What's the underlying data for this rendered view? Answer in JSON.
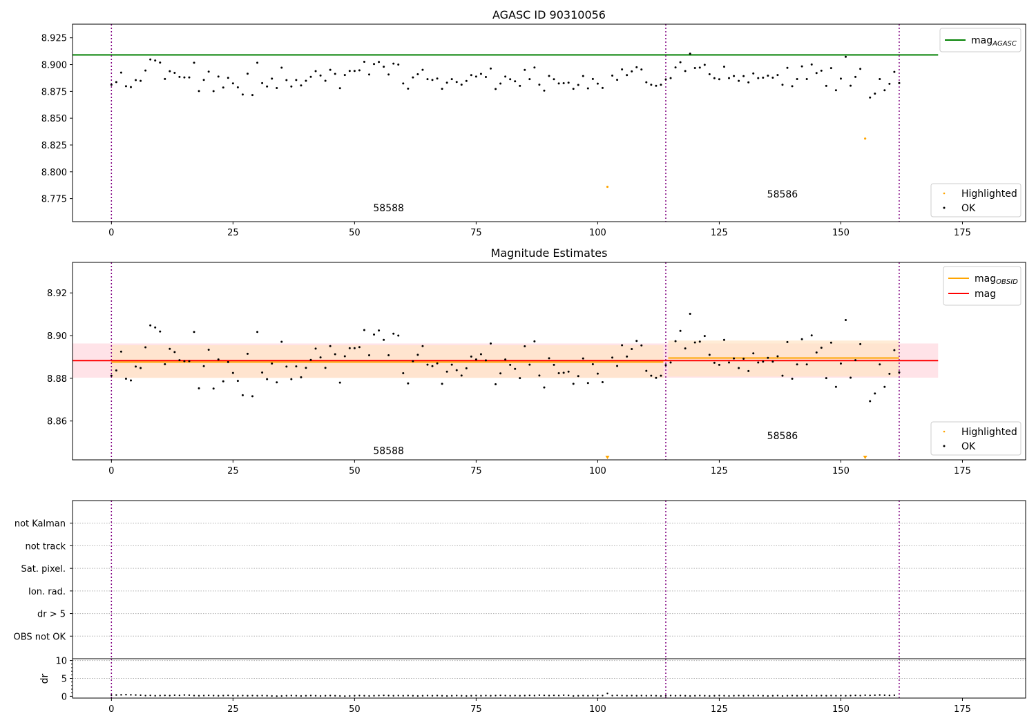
{
  "colors": {
    "ok": "#000000",
    "highlighted": "#ffa500",
    "mag_agasc": "#008000",
    "mag": "#ff0000",
    "mag_obsid": "#ffa500",
    "obs_boundary": "#800080",
    "mag_band": "#ffc0cb",
    "obsid_band": "#ffe4c4",
    "flag_grid": "#b0b0b0"
  },
  "chart_data": [
    {
      "type": "scatter",
      "title": "AGASC ID 90310056",
      "xlabel": "",
      "ylabel": "",
      "xlim": [
        -8,
        188
      ],
      "ylim": [
        8.7535,
        8.9377
      ],
      "xticks": [
        "0",
        "25",
        "50",
        "75",
        "100",
        "125",
        "150",
        "175"
      ],
      "yticks": [
        "8.775",
        "8.800",
        "8.825",
        "8.850",
        "8.875",
        "8.900",
        "8.925"
      ],
      "legend_lines": [
        {
          "name": "mag",
          "sub": "AGASC"
        }
      ],
      "legend_points": [
        "Highlighted",
        "OK"
      ],
      "mag_agasc": {
        "value": 8.909,
        "x_range": [
          -8,
          170
        ]
      },
      "obs_boundaries": [
        0,
        114,
        162
      ],
      "obsid_labels": [
        {
          "text": "58588",
          "x": 57,
          "y": 8.763
        },
        {
          "text": "58586",
          "x": 138,
          "y": 8.776
        }
      ],
      "highlighted": [
        [
          102,
          8.786
        ],
        [
          155,
          8.831
        ]
      ]
    },
    {
      "type": "scatter",
      "title": "Magnitude Estimates",
      "xlabel": "",
      "ylabel": "",
      "xlim": [
        -8,
        188
      ],
      "ylim": [
        8.8418,
        8.9343
      ],
      "xticks": [
        "0",
        "25",
        "50",
        "75",
        "100",
        "125",
        "150",
        "175"
      ],
      "yticks": [
        "8.86",
        "8.88",
        "8.90",
        "8.92"
      ],
      "legend_lines": [
        {
          "name": "mag",
          "sub": "OBSID"
        },
        {
          "name": "mag",
          "sub": ""
        }
      ],
      "legend_points": [
        "Highlighted",
        "OK"
      ],
      "mag": {
        "value": 8.8883,
        "band": [
          8.8803,
          8.8963
        ],
        "x_range": [
          -8,
          170
        ]
      },
      "mag_obsid": [
        {
          "x_range": [
            0,
            113.5
          ],
          "value": 8.8876,
          "band": [
            8.8802,
            8.8955
          ]
        },
        {
          "x_range": [
            114.5,
            162
          ],
          "value": 8.8895,
          "band": [
            8.8808,
            8.8977
          ]
        }
      ],
      "obs_boundaries": [
        0,
        114,
        162
      ],
      "obsid_labels": [
        {
          "text": "58588",
          "x": 57,
          "y": 8.8445
        },
        {
          "text": "58586",
          "x": 138,
          "y": 8.8515
        }
      ],
      "highlighted_clipped_x": [
        102,
        155
      ]
    },
    {
      "type": "scatter",
      "title": "",
      "xlabel": "",
      "ylabel": "",
      "xlim": [
        -8,
        188
      ],
      "flag_labels": [
        "not Kalman",
        "not track",
        "Sat. pixel.",
        "Ion. rad.",
        "dr > 5",
        "OBS not OK"
      ],
      "obs_boundaries": [
        0,
        114,
        162
      ]
    },
    {
      "type": "scatter",
      "title": "",
      "xlabel": "",
      "ylabel": "dr",
      "xlim": [
        -8,
        188
      ],
      "ylim": [
        -0.5,
        10.5
      ],
      "xticks": [
        "0",
        "25",
        "50",
        "75",
        "100",
        "125",
        "150",
        "175"
      ],
      "yticks": [
        "0",
        "5",
        "10"
      ],
      "obs_boundaries": [
        0,
        114,
        162
      ],
      "dr_points": [
        [
          0,
          0.3
        ],
        [
          1,
          0.35
        ],
        [
          2,
          0.4
        ],
        [
          3,
          0.45
        ],
        [
          4,
          0.4
        ],
        [
          5,
          0.35
        ],
        [
          6,
          0.3
        ],
        [
          7,
          0.2
        ],
        [
          8,
          0.25
        ],
        [
          9,
          0.15
        ],
        [
          10,
          0.2
        ],
        [
          11,
          0.25
        ],
        [
          12,
          0.2
        ],
        [
          13,
          0.3
        ],
        [
          14,
          0.25
        ],
        [
          15,
          0.35
        ],
        [
          16,
          0.3
        ],
        [
          17,
          0.2
        ],
        [
          18,
          0.15
        ],
        [
          19,
          0.2
        ],
        [
          20,
          0.25
        ],
        [
          21,
          0.2
        ],
        [
          22,
          0.15
        ],
        [
          23,
          0.2
        ],
        [
          24,
          0.25
        ],
        [
          25,
          0.2
        ],
        [
          26,
          0.15
        ],
        [
          27,
          0.2
        ],
        [
          28,
          0.15
        ],
        [
          29,
          0.2
        ],
        [
          30,
          0.15
        ],
        [
          31,
          0.2
        ],
        [
          32,
          0.15
        ],
        [
          33,
          0.1
        ],
        [
          34,
          0.05
        ],
        [
          35,
          0.1
        ],
        [
          36,
          0.15
        ],
        [
          37,
          0.2
        ],
        [
          38,
          0.15
        ],
        [
          39,
          0.1
        ],
        [
          40,
          0.15
        ],
        [
          41,
          0.2
        ],
        [
          42,
          0.15
        ],
        [
          43,
          0.1
        ],
        [
          44,
          0.15
        ],
        [
          45,
          0.2
        ],
        [
          46,
          0.15
        ],
        [
          47,
          0.1
        ],
        [
          48,
          0.05
        ],
        [
          49,
          0.1
        ],
        [
          50,
          0.15
        ],
        [
          51,
          0.2
        ],
        [
          52,
          0.15
        ],
        [
          53,
          0.1
        ],
        [
          54,
          0.15
        ],
        [
          55,
          0.2
        ],
        [
          56,
          0.25
        ],
        [
          57,
          0.2
        ],
        [
          58,
          0.15
        ],
        [
          59,
          0.2
        ],
        [
          60,
          0.15
        ],
        [
          61,
          0.2
        ],
        [
          62,
          0.15
        ],
        [
          63,
          0.1
        ],
        [
          64,
          0.15
        ],
        [
          65,
          0.2
        ],
        [
          66,
          0.15
        ],
        [
          67,
          0.2
        ],
        [
          68,
          0.15
        ],
        [
          69,
          0.1
        ],
        [
          70,
          0.15
        ],
        [
          71,
          0.2
        ],
        [
          72,
          0.15
        ],
        [
          73,
          0.1
        ],
        [
          74,
          0.15
        ],
        [
          75,
          0.2
        ],
        [
          76,
          0.15
        ],
        [
          77,
          0.2
        ],
        [
          78,
          0.15
        ],
        [
          79,
          0.2
        ],
        [
          80,
          0.25
        ],
        [
          81,
          0.2
        ],
        [
          82,
          0.15
        ],
        [
          83,
          0.2
        ],
        [
          84,
          0.15
        ],
        [
          85,
          0.2
        ],
        [
          86,
          0.25
        ],
        [
          87,
          0.2
        ],
        [
          88,
          0.3
        ],
        [
          89,
          0.25
        ],
        [
          90,
          0.2
        ],
        [
          91,
          0.25
        ],
        [
          92,
          0.2
        ],
        [
          93,
          0.3
        ],
        [
          94,
          0.25
        ],
        [
          95,
          0.1
        ],
        [
          96,
          0.15
        ],
        [
          97,
          0.2
        ],
        [
          98,
          0.15
        ],
        [
          99,
          0.2
        ],
        [
          100,
          0.25
        ],
        [
          101,
          0.2
        ],
        [
          102,
          0.8
        ],
        [
          103,
          0.2
        ],
        [
          104,
          0.25
        ],
        [
          105,
          0.2
        ],
        [
          106,
          0.15
        ],
        [
          107,
          0.2
        ],
        [
          108,
          0.15
        ],
        [
          109,
          0.2
        ],
        [
          110,
          0.15
        ],
        [
          111,
          0.2
        ],
        [
          112,
          0.15
        ],
        [
          113,
          0.1
        ],
        [
          114,
          0.15
        ],
        [
          115,
          0.2
        ],
        [
          116,
          0.15
        ],
        [
          117,
          0.2
        ],
        [
          118,
          0.15
        ],
        [
          119,
          0.1
        ],
        [
          120,
          0.15
        ],
        [
          121,
          0.2
        ],
        [
          122,
          0.15
        ],
        [
          123,
          0.1
        ],
        [
          124,
          0.15
        ],
        [
          125,
          0.2
        ],
        [
          126,
          0.15
        ],
        [
          127,
          0.1
        ],
        [
          128,
          0.15
        ],
        [
          129,
          0.2
        ],
        [
          130,
          0.15
        ],
        [
          131,
          0.2
        ],
        [
          132,
          0.15
        ],
        [
          133,
          0.2
        ],
        [
          134,
          0.15
        ],
        [
          135,
          0.1
        ],
        [
          136,
          0.15
        ],
        [
          137,
          0.2
        ],
        [
          138,
          0.1
        ],
        [
          139,
          0.15
        ],
        [
          140,
          0.2
        ],
        [
          141,
          0.15
        ],
        [
          142,
          0.2
        ],
        [
          143,
          0.15
        ],
        [
          144,
          0.2
        ],
        [
          145,
          0.15
        ],
        [
          146,
          0.2
        ],
        [
          147,
          0.15
        ],
        [
          148,
          0.2
        ],
        [
          149,
          0.15
        ],
        [
          150,
          0.2
        ],
        [
          151,
          0.15
        ],
        [
          152,
          0.2
        ],
        [
          153,
          0.25
        ],
        [
          154,
          0.2
        ],
        [
          155,
          0.3
        ],
        [
          156,
          0.25
        ],
        [
          157,
          0.3
        ],
        [
          158,
          0.35
        ],
        [
          159,
          0.3
        ],
        [
          160,
          0.25
        ],
        [
          161,
          0.3
        ]
      ]
    }
  ],
  "ok_points": [
    [
      0,
      8.8812
    ],
    [
      1,
      8.8837
    ],
    [
      2,
      8.8925
    ],
    [
      3,
      8.8798
    ],
    [
      4,
      8.879
    ],
    [
      5,
      8.8855
    ],
    [
      6,
      8.8848
    ],
    [
      7,
      8.8945
    ],
    [
      8,
      8.9048
    ],
    [
      9,
      8.9038
    ],
    [
      10,
      8.9019
    ],
    [
      11,
      8.8866
    ],
    [
      12,
      8.8938
    ],
    [
      13,
      8.8923
    ],
    [
      14,
      8.8885
    ],
    [
      15,
      8.888
    ],
    [
      16,
      8.888
    ],
    [
      17,
      8.9017
    ],
    [
      18,
      8.8753
    ],
    [
      19,
      8.8857
    ],
    [
      20,
      8.8934
    ],
    [
      21,
      8.8752
    ],
    [
      22,
      8.8888
    ],
    [
      23,
      8.8786
    ],
    [
      24,
      8.8876
    ],
    [
      25,
      8.8825
    ],
    [
      26,
      8.8788
    ],
    [
      27,
      8.8721
    ],
    [
      28,
      8.8915
    ],
    [
      29,
      8.8716
    ],
    [
      30,
      8.9017
    ],
    [
      31,
      8.8827
    ],
    [
      32,
      8.8796
    ],
    [
      33,
      8.8869
    ],
    [
      34,
      8.8781
    ],
    [
      35,
      8.8971
    ],
    [
      36,
      8.8855
    ],
    [
      37,
      8.8796
    ],
    [
      38,
      8.8856
    ],
    [
      39,
      8.8805
    ],
    [
      40,
      8.8849
    ],
    [
      41,
      8.8886
    ],
    [
      42,
      8.8939
    ],
    [
      43,
      8.8898
    ],
    [
      44,
      8.8849
    ],
    [
      45,
      8.8951
    ],
    [
      46,
      8.8913
    ],
    [
      47,
      8.878
    ],
    [
      48,
      8.8903
    ],
    [
      49,
      8.8941
    ],
    [
      50,
      8.8941
    ],
    [
      51,
      8.8946
    ],
    [
      52,
      8.9026
    ],
    [
      53,
      8.8908
    ],
    [
      54,
      8.9005
    ],
    [
      55,
      8.9024
    ],
    [
      56,
      8.898
    ],
    [
      57,
      8.8908
    ],
    [
      58,
      8.9009
    ],
    [
      59,
      8.9
    ],
    [
      60,
      8.8824
    ],
    [
      61,
      8.8776
    ],
    [
      62,
      8.888
    ],
    [
      63,
      8.891
    ],
    [
      64,
      8.8951
    ],
    [
      65,
      8.8864
    ],
    [
      66,
      8.8857
    ],
    [
      67,
      8.887
    ],
    [
      68,
      8.8774
    ],
    [
      69,
      8.8831
    ],
    [
      70,
      8.8864
    ],
    [
      71,
      8.8838
    ],
    [
      72,
      8.8813
    ],
    [
      73,
      8.8847
    ],
    [
      74,
      8.8902
    ],
    [
      75,
      8.8888
    ],
    [
      76,
      8.8913
    ],
    [
      77,
      8.8884
    ],
    [
      78,
      8.8963
    ],
    [
      79,
      8.8772
    ],
    [
      80,
      8.8823
    ],
    [
      81,
      8.8888
    ],
    [
      82,
      8.8863
    ],
    [
      83,
      8.8844
    ],
    [
      84,
      8.8801
    ],
    [
      85,
      8.895
    ],
    [
      86,
      8.8864
    ],
    [
      87,
      8.8973
    ],
    [
      88,
      8.8813
    ],
    [
      89,
      8.8757
    ],
    [
      90,
      8.8894
    ],
    [
      91,
      8.8863
    ],
    [
      92,
      8.8824
    ],
    [
      93,
      8.8826
    ],
    [
      94,
      8.8831
    ],
    [
      95,
      8.8774
    ],
    [
      96,
      8.881
    ],
    [
      97,
      8.8893
    ],
    [
      98,
      8.8778
    ],
    [
      99,
      8.8866
    ],
    [
      100,
      8.8822
    ],
    [
      101,
      8.8782
    ],
    [
      103,
      8.8897
    ],
    [
      104,
      8.8858
    ],
    [
      105,
      8.8955
    ],
    [
      106,
      8.8902
    ],
    [
      107,
      8.8937
    ],
    [
      108,
      8.8975
    ],
    [
      109,
      8.8954
    ],
    [
      110,
      8.8835
    ],
    [
      111,
      8.8812
    ],
    [
      112,
      8.8802
    ],
    [
      113,
      8.8812
    ],
    [
      114,
      8.8862
    ],
    [
      115,
      8.8874
    ],
    [
      116,
      8.8974
    ],
    [
      117,
      8.9022
    ],
    [
      118,
      8.894
    ],
    [
      119,
      8.9102
    ],
    [
      120,
      8.8968
    ],
    [
      121,
      8.8972
    ],
    [
      122,
      8.8998
    ],
    [
      123,
      8.891
    ],
    [
      124,
      8.8873
    ],
    [
      125,
      8.8863
    ],
    [
      126,
      8.898
    ],
    [
      127,
      8.8874
    ],
    [
      128,
      8.8893
    ],
    [
      129,
      8.8848
    ],
    [
      130,
      8.8892
    ],
    [
      131,
      8.8834
    ],
    [
      132,
      8.8917
    ],
    [
      133,
      8.8874
    ],
    [
      134,
      8.8878
    ],
    [
      135,
      8.8896
    ],
    [
      136,
      8.8878
    ],
    [
      137,
      8.8903
    ],
    [
      138,
      8.8812
    ],
    [
      139,
      8.897
    ],
    [
      140,
      8.8798
    ],
    [
      141,
      8.8865
    ],
    [
      142,
      8.8983
    ],
    [
      143,
      8.8865
    ],
    [
      144,
      8.9001
    ],
    [
      145,
      8.8921
    ],
    [
      146,
      8.8943
    ],
    [
      147,
      8.8801
    ],
    [
      148,
      8.8967
    ],
    [
      149,
      8.876
    ],
    [
      150,
      8.8869
    ],
    [
      151,
      8.9073
    ],
    [
      152,
      8.8803
    ],
    [
      153,
      8.8885
    ],
    [
      154,
      8.896
    ],
    [
      156,
      8.8693
    ],
    [
      157,
      8.8729
    ],
    [
      158,
      8.8865
    ],
    [
      159,
      8.876
    ],
    [
      160,
      8.8821
    ],
    [
      161,
      8.8932
    ],
    [
      162,
      8.8828
    ]
  ]
}
